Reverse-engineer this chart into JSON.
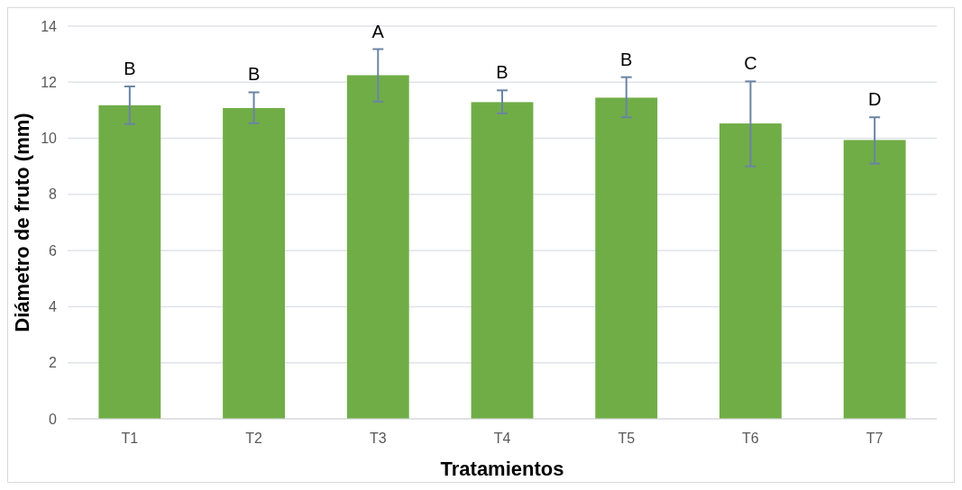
{
  "chart_data": {
    "type": "bar",
    "xlabel": "Tratamientos",
    "ylabel": "Diámetro de fruto (mm)",
    "categories": [
      "T1",
      "T2",
      "T3",
      "T4",
      "T5",
      "T6",
      "T7"
    ],
    "values": [
      11.18,
      11.08,
      12.25,
      11.29,
      11.45,
      10.53,
      9.94
    ],
    "errors": [
      [
        10.51,
        11.85
      ],
      [
        10.54,
        11.64
      ],
      [
        11.31,
        13.18
      ],
      [
        10.89,
        11.71
      ],
      [
        10.75,
        12.18
      ],
      [
        9.0,
        12.03
      ],
      [
        9.1,
        10.75
      ]
    ],
    "color": "#70ad47",
    "ylim": [
      0,
      14
    ],
    "yticks": [
      0,
      2,
      4,
      6,
      8,
      10,
      12,
      14
    ],
    "grid": "y",
    "annotations": [
      "B",
      "B",
      "A",
      "B",
      "B",
      "C",
      "D"
    ]
  }
}
